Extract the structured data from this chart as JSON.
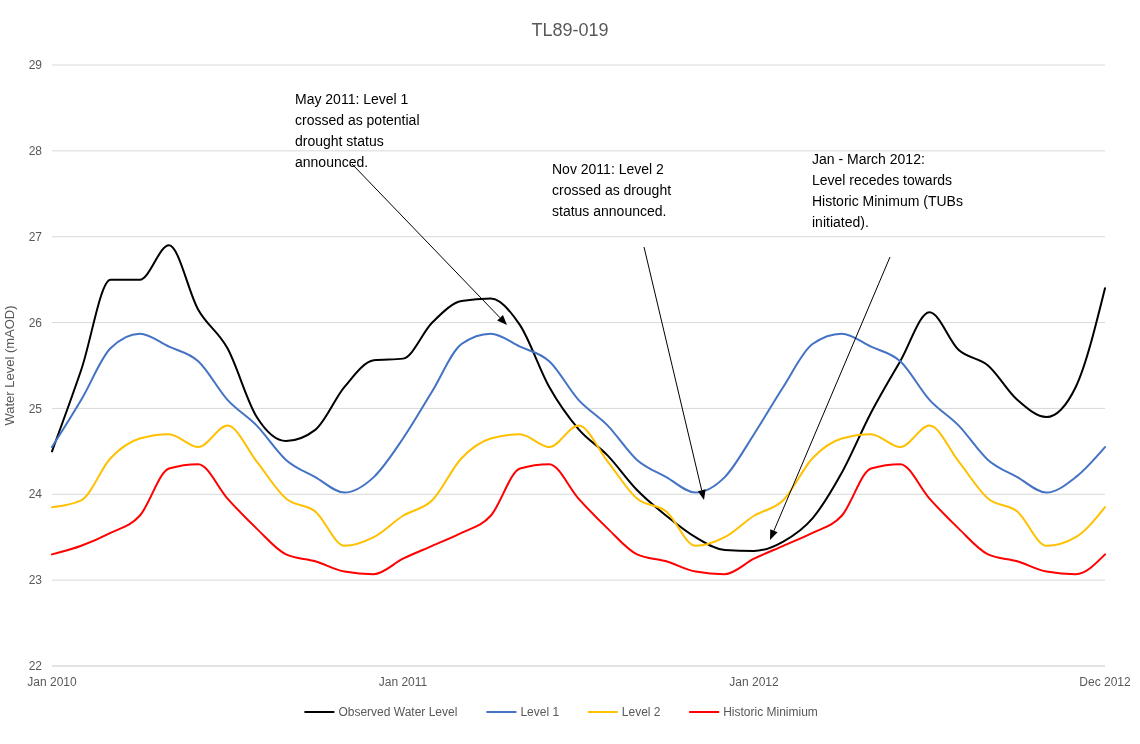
{
  "chart_data": {
    "type": "line",
    "title": "TL89-019",
    "ylabel": "Water Level (mAOD)",
    "categories": [
      "Jan 2010",
      null,
      null,
      null,
      null,
      null,
      null,
      null,
      null,
      null,
      null,
      null,
      "Jan 2011",
      null,
      null,
      null,
      null,
      null,
      null,
      null,
      null,
      null,
      null,
      null,
      "Jan 2012",
      null,
      null,
      null,
      null,
      null,
      null,
      null,
      null,
      null,
      null,
      null,
      "Dec 2012"
    ],
    "series": [
      {
        "name": "Observed Water Level",
        "color": "#000000",
        "values": [
          24.5,
          25.45,
          26.5,
          26.5,
          26.9,
          26.15,
          25.7,
          24.9,
          24.62,
          24.75,
          25.25,
          25.56,
          25.58,
          26.0,
          26.25,
          26.28,
          25.97,
          25.25,
          24.76,
          24.45,
          24.05,
          23.75,
          23.5,
          23.35,
          23.34,
          23.45,
          23.72,
          24.25,
          24.95,
          25.55,
          26.12,
          25.68,
          25.5,
          25.1,
          24.9,
          25.25,
          26.4
        ]
      },
      {
        "name": "Level 1",
        "color": "#4472c4",
        "values": [
          24.55,
          25.1,
          25.7,
          25.87,
          25.72,
          25.55,
          25.1,
          24.8,
          24.4,
          24.2,
          24.02,
          24.2,
          24.65,
          25.2,
          25.75,
          25.87,
          25.72,
          25.55,
          25.1,
          24.8,
          24.4,
          24.2,
          24.02,
          24.2,
          24.7,
          25.25,
          25.75,
          25.87,
          25.72,
          25.55,
          25.1,
          24.8,
          24.4,
          24.2,
          24.02,
          24.2,
          24.55
        ]
      },
      {
        "name": "Level 2",
        "color": "#ffc000",
        "values": [
          23.85,
          23.93,
          24.42,
          24.65,
          24.7,
          24.55,
          24.8,
          24.38,
          23.95,
          23.8,
          23.4,
          23.5,
          23.75,
          23.93,
          24.42,
          24.65,
          24.7,
          24.55,
          24.8,
          24.38,
          23.95,
          23.8,
          23.4,
          23.5,
          23.75,
          23.93,
          24.42,
          24.65,
          24.7,
          24.55,
          24.8,
          24.38,
          23.95,
          23.8,
          23.4,
          23.5,
          23.85
        ]
      },
      {
        "name": "Historic Minimium",
        "color": "#ff0000",
        "values": [
          23.3,
          23.4,
          23.55,
          23.75,
          24.3,
          24.35,
          23.95,
          23.6,
          23.3,
          23.22,
          23.1,
          23.07,
          23.25,
          23.4,
          23.55,
          23.75,
          24.3,
          24.35,
          23.95,
          23.6,
          23.3,
          23.22,
          23.1,
          23.07,
          23.25,
          23.4,
          23.55,
          23.75,
          24.3,
          24.35,
          23.95,
          23.6,
          23.3,
          23.22,
          23.1,
          23.07,
          23.3
        ]
      }
    ],
    "ylim": [
      22,
      29
    ],
    "yticks": [
      22,
      23,
      24,
      25,
      26,
      27,
      28,
      29
    ],
    "grid": "y",
    "legend": "bottom",
    "annotations": [
      "May 2011: Level 1 crossed as potential drought status announced.",
      "Nov 2011: Level 2 crossed as drought status announced.",
      "Jan - March 2012: Level recedes towards Historic Minimum (TUBs initiated)."
    ]
  }
}
